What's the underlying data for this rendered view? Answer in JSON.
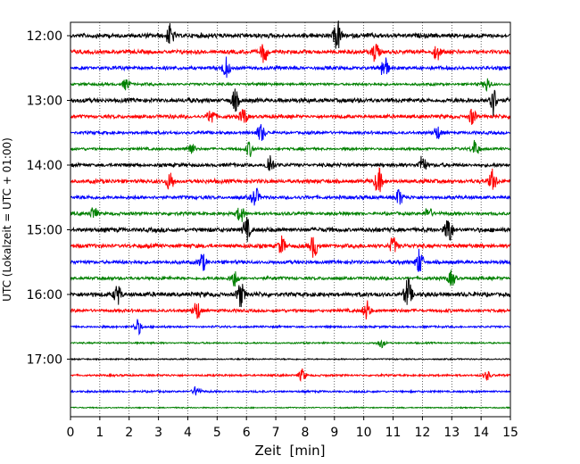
{
  "chart_data": {
    "type": "line",
    "title": "",
    "xlabel": "Zeit  [min]",
    "ylabel": "UTC (Lokalzeit = UTC + 01:00)",
    "xlim": [
      0,
      15
    ],
    "x_ticks": [
      "0",
      "1",
      "2",
      "3",
      "4",
      "5",
      "6",
      "7",
      "8",
      "9",
      "10",
      "11",
      "12",
      "13",
      "14",
      "15"
    ],
    "y_ticks": [
      "12:00",
      "13:00",
      "14:00",
      "15:00",
      "16:00",
      "17:00"
    ],
    "vertical_grid": true,
    "trace_colors": [
      "#000000",
      "#ff0000",
      "#0000ff",
      "#008000"
    ],
    "traces": [
      {
        "start": "12:00",
        "amplitude": 1.0,
        "events": [
          [
            3.4,
            1.4
          ],
          [
            9.1,
            2.0
          ]
        ]
      },
      {
        "start": "12:15",
        "amplitude": 0.9,
        "events": [
          [
            6.6,
            1.5
          ],
          [
            10.4,
            1.5
          ],
          [
            12.5,
            1.2
          ]
        ]
      },
      {
        "start": "12:30",
        "amplitude": 0.8,
        "events": [
          [
            5.3,
            1.6
          ],
          [
            10.7,
            2.0
          ]
        ]
      },
      {
        "start": "12:45",
        "amplitude": 0.6,
        "events": [
          [
            1.9,
            1.2
          ],
          [
            14.2,
            1.4
          ]
        ]
      },
      {
        "start": "13:00",
        "amplitude": 1.0,
        "events": [
          [
            5.6,
            1.3
          ],
          [
            14.4,
            2.0
          ]
        ]
      },
      {
        "start": "13:15",
        "amplitude": 0.8,
        "events": [
          [
            4.8,
            1.3
          ],
          [
            5.9,
            1.4
          ],
          [
            13.7,
            1.3
          ]
        ]
      },
      {
        "start": "13:30",
        "amplitude": 0.7,
        "events": [
          [
            6.5,
            1.6
          ],
          [
            12.5,
            1.2
          ]
        ]
      },
      {
        "start": "13:45",
        "amplitude": 0.6,
        "events": [
          [
            4.1,
            1.4
          ],
          [
            6.1,
            1.5
          ],
          [
            13.8,
            1.8
          ]
        ]
      },
      {
        "start": "14:00",
        "amplitude": 0.8,
        "events": [
          [
            6.8,
            1.8
          ],
          [
            12.0,
            1.5
          ]
        ]
      },
      {
        "start": "14:15",
        "amplitude": 0.9,
        "events": [
          [
            3.4,
            1.3
          ],
          [
            10.5,
            1.8
          ],
          [
            14.4,
            1.5
          ]
        ]
      },
      {
        "start": "14:30",
        "amplitude": 0.8,
        "events": [
          [
            6.3,
            1.5
          ],
          [
            11.2,
            1.3
          ]
        ]
      },
      {
        "start": "14:45",
        "amplitude": 0.7,
        "events": [
          [
            0.8,
            1.3
          ],
          [
            5.8,
            1.6
          ],
          [
            12.2,
            1.2
          ]
        ]
      },
      {
        "start": "15:00",
        "amplitude": 1.0,
        "events": [
          [
            6.0,
            1.5
          ],
          [
            12.9,
            1.8
          ]
        ]
      },
      {
        "start": "15:15",
        "amplitude": 0.9,
        "events": [
          [
            7.2,
            1.3
          ],
          [
            8.3,
            1.6
          ],
          [
            11.0,
            1.2
          ]
        ]
      },
      {
        "start": "15:30",
        "amplitude": 0.8,
        "events": [
          [
            4.5,
            1.4
          ],
          [
            11.9,
            2.0
          ]
        ]
      },
      {
        "start": "15:45",
        "amplitude": 0.7,
        "events": [
          [
            5.6,
            1.5
          ],
          [
            13.0,
            1.4
          ]
        ]
      },
      {
        "start": "16:00",
        "amplitude": 1.0,
        "events": [
          [
            1.6,
            1.3
          ],
          [
            5.8,
            1.5
          ],
          [
            11.5,
            2.0
          ]
        ]
      },
      {
        "start": "16:15",
        "amplitude": 0.7,
        "events": [
          [
            4.3,
            1.8
          ],
          [
            10.1,
            1.8
          ]
        ]
      },
      {
        "start": "16:30",
        "amplitude": 0.45,
        "events": [
          [
            2.3,
            2.2
          ]
        ]
      },
      {
        "start": "16:45",
        "amplitude": 0.35,
        "events": [
          [
            10.6,
            1.6
          ]
        ]
      },
      {
        "start": "17:00",
        "amplitude": 0.3,
        "events": []
      },
      {
        "start": "17:15",
        "amplitude": 0.45,
        "events": [
          [
            7.9,
            1.8
          ],
          [
            14.2,
            1.2
          ]
        ]
      },
      {
        "start": "17:30",
        "amplitude": 0.45,
        "events": [
          [
            4.3,
            1.5
          ]
        ]
      },
      {
        "start": "17:45",
        "amplitude": 0.25,
        "events": []
      }
    ]
  }
}
